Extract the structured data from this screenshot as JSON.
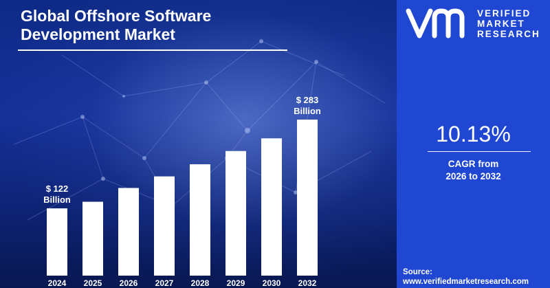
{
  "title_lines": [
    "Global Offshore Software",
    "Development Market"
  ],
  "brand": {
    "line1": "VERIFIED",
    "line2": "MARKET",
    "line3": "RESEARCH"
  },
  "cagr": {
    "value": "10.13%",
    "label_line1": "CAGR from",
    "label_line2": "2026 to 2032"
  },
  "source": {
    "label": "Source:",
    "url": "www.verifiedmarketresearch.com"
  },
  "colors": {
    "panel": "#1f47d2",
    "bar": "#ffffff",
    "text": "#ffffff"
  },
  "chart_data": {
    "type": "bar",
    "title": "Global Offshore Software Development Market",
    "categories": [
      "2024",
      "2025",
      "2026",
      "2027",
      "2028",
      "2029",
      "2030",
      "2032"
    ],
    "values": [
      122,
      134,
      159,
      180,
      202,
      226,
      249,
      283
    ],
    "unit": "Billion",
    "annotations": [
      {
        "category": "2024",
        "line1": "$ 122",
        "line2": "Billion"
      },
      {
        "category": "2032",
        "line1": "$ 283",
        "line2": "Billion"
      }
    ],
    "ylim": [
      0,
      283
    ],
    "grid": false,
    "legend": "none"
  }
}
